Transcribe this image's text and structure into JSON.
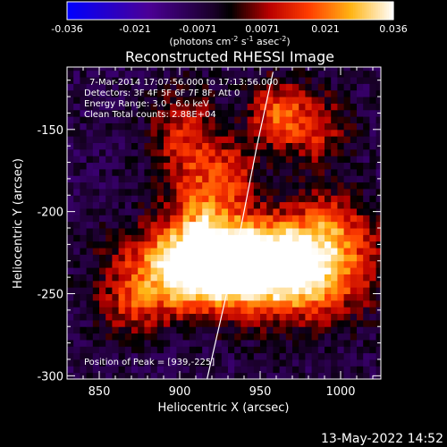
{
  "chart_data": {
    "type": "heatmap",
    "title": "Reconstructed RHESSI Image",
    "xlabel": "Heliocentric X (arcsec)",
    "ylabel": "Heliocentric Y (arcsec)",
    "xlim": [
      830,
      1025
    ],
    "ylim": [
      -302,
      -112
    ],
    "x_ticks": [
      850,
      900,
      950,
      1000
    ],
    "y_ticks": [
      -150,
      -200,
      -250,
      -300
    ],
    "colorbar": {
      "min": -0.036,
      "max": 0.036,
      "ticks": [
        "-0.036",
        "-0.021",
        "-0.0071",
        "0.0071",
        "0.021",
        "0.036"
      ],
      "units_label": "(photons cm",
      "units_exp1": "-2",
      "units_mid": " s",
      "units_exp2": "-1",
      "units_mid2": " asec",
      "units_exp3": "-2",
      "units_close": ")"
    },
    "annotations": {
      "time": "7-Mar-2014 17:07:56.000 to 17:13:56.000",
      "detectors": "Detectors: 3F 4F 5F 6F 7F 8F, Att 0",
      "energy": "Energy Range: 3.0 - 6.0 keV",
      "clean": "Clean     Total counts: 2.88E+04",
      "peak": "Position of Peak = [939,-225]"
    },
    "peak": {
      "x": 939,
      "y": -225
    },
    "limb_curve": [
      [
        958,
        -115
      ],
      [
        948,
        -160
      ],
      [
        938,
        -210
      ],
      [
        928,
        -255
      ],
      [
        917,
        -302
      ]
    ],
    "sources": [
      {
        "x": 945,
        "y": -228,
        "sx": 42,
        "sy": 18,
        "amp": 0.04
      },
      {
        "x": 905,
        "y": -238,
        "sx": 28,
        "sy": 16,
        "amp": 0.03
      },
      {
        "x": 975,
        "y": -240,
        "sx": 28,
        "sy": 20,
        "amp": 0.026
      },
      {
        "x": 915,
        "y": -195,
        "sx": 16,
        "sy": 28,
        "amp": 0.022
      },
      {
        "x": 900,
        "y": -150,
        "sx": 14,
        "sy": 18,
        "amp": 0.016
      },
      {
        "x": 960,
        "y": -140,
        "sx": 12,
        "sy": 14,
        "amp": 0.024
      },
      {
        "x": 985,
        "y": -150,
        "sx": 14,
        "sy": 16,
        "amp": 0.018
      },
      {
        "x": 935,
        "y": -175,
        "sx": 10,
        "sy": 12,
        "amp": 0.012
      },
      {
        "x": 995,
        "y": -205,
        "sx": 16,
        "sy": 14,
        "amp": 0.014
      },
      {
        "x": 870,
        "y": -260,
        "sx": 14,
        "sy": 12,
        "amp": 0.015
      }
    ]
  },
  "footer": {
    "date": "13-May-2022 14:52"
  },
  "colors": {
    "background": "#000000",
    "axis": "#ffffff",
    "limb": "#ffffff"
  }
}
